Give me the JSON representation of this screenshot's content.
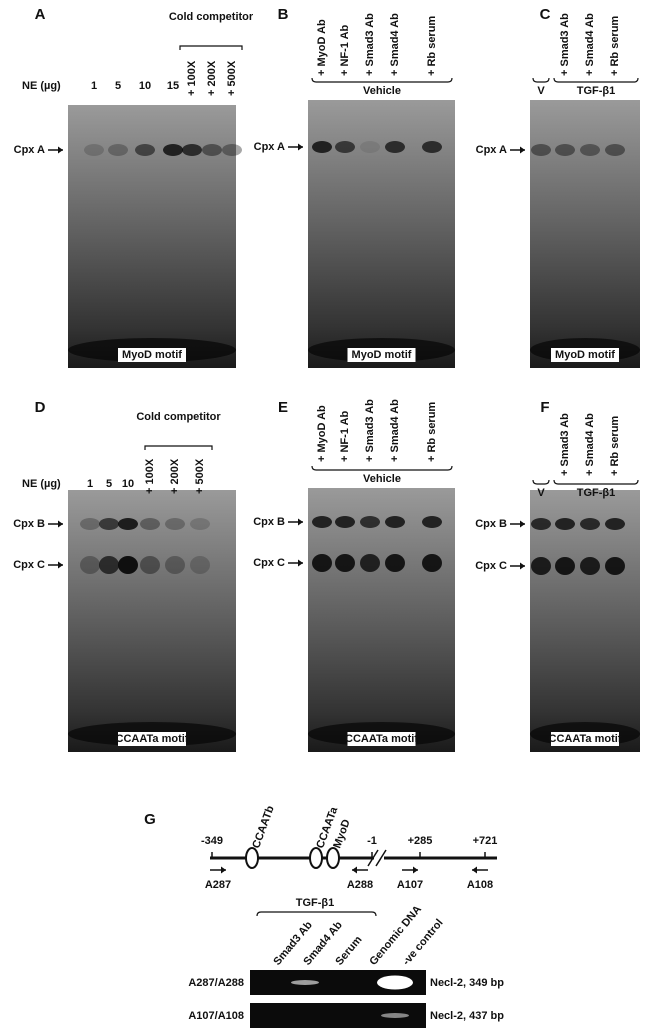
{
  "panels": [
    {
      "label": "A",
      "row_label": "NE (µg)",
      "lanes": [
        "1",
        "5",
        "10",
        "15",
        "+ 100X",
        "+ 200X",
        "+ 500X"
      ],
      "groups": [
        "Cold competitor"
      ],
      "complexes": [
        "Cpx A"
      ],
      "motif": "MyoD motif"
    },
    {
      "label": "B",
      "lanes": [
        "+ MyoD Ab",
        "+ NF-1 Ab",
        "+ Smad3 Ab",
        "+ Smad4 Ab",
        "+ Rb serum"
      ],
      "groups": [
        "Vehicle"
      ],
      "complexes": [
        "Cpx A"
      ],
      "motif": "MyoD motif"
    },
    {
      "label": "C",
      "lanes": [
        "+ Smad3 Ab",
        "+ Smad4 Ab",
        "+ Rb serum"
      ],
      "groups": [
        "V",
        "TGF-β1"
      ],
      "complexes": [
        "Cpx A"
      ],
      "motif": "MyoD motif"
    },
    {
      "label": "D",
      "row_label": "NE (µg)",
      "lanes": [
        "1",
        "5",
        "10",
        "+ 100X",
        "+ 200X",
        "+ 500X"
      ],
      "groups": [
        "Cold competitor"
      ],
      "complexes": [
        "Cpx B",
        "Cpx C"
      ],
      "motif": "CCAATa motif"
    },
    {
      "label": "E",
      "lanes": [
        "+ MyoD Ab",
        "+ NF-1 Ab",
        "+ Smad3 Ab",
        "+ Smad4 Ab",
        "+ Rb serum"
      ],
      "groups": [
        "Vehicle"
      ],
      "complexes": [
        "Cpx B",
        "Cpx C"
      ],
      "motif": "CCAATa motif"
    },
    {
      "label": "F",
      "lanes": [
        "+ Smad3 Ab",
        "+ Smad4 Ab",
        "+ Rb serum"
      ],
      "groups": [
        "V",
        "TGF-β1"
      ],
      "complexes": [
        "Cpx B",
        "Cpx C"
      ],
      "motif": "CCAATa motif"
    }
  ],
  "panel_g": {
    "label": "G",
    "elements": [
      "CCAATb",
      "CCAATa",
      "MyoD"
    ],
    "positions": [
      "-349",
      "-1",
      "+285",
      "+721"
    ],
    "primers": [
      "A287",
      "A288",
      "A107",
      "A108"
    ],
    "group": "TGF-β1",
    "lanes": [
      "Smad3 Ab",
      "Smad4 Ab",
      "Serum",
      "Genomic DNA",
      "-ve control"
    ],
    "rows": [
      {
        "name": "A287/A288",
        "product": "Necl-2, 349 bp"
      },
      {
        "name": "A107/A108",
        "product": "Necl-2, 437 bp"
      }
    ]
  }
}
